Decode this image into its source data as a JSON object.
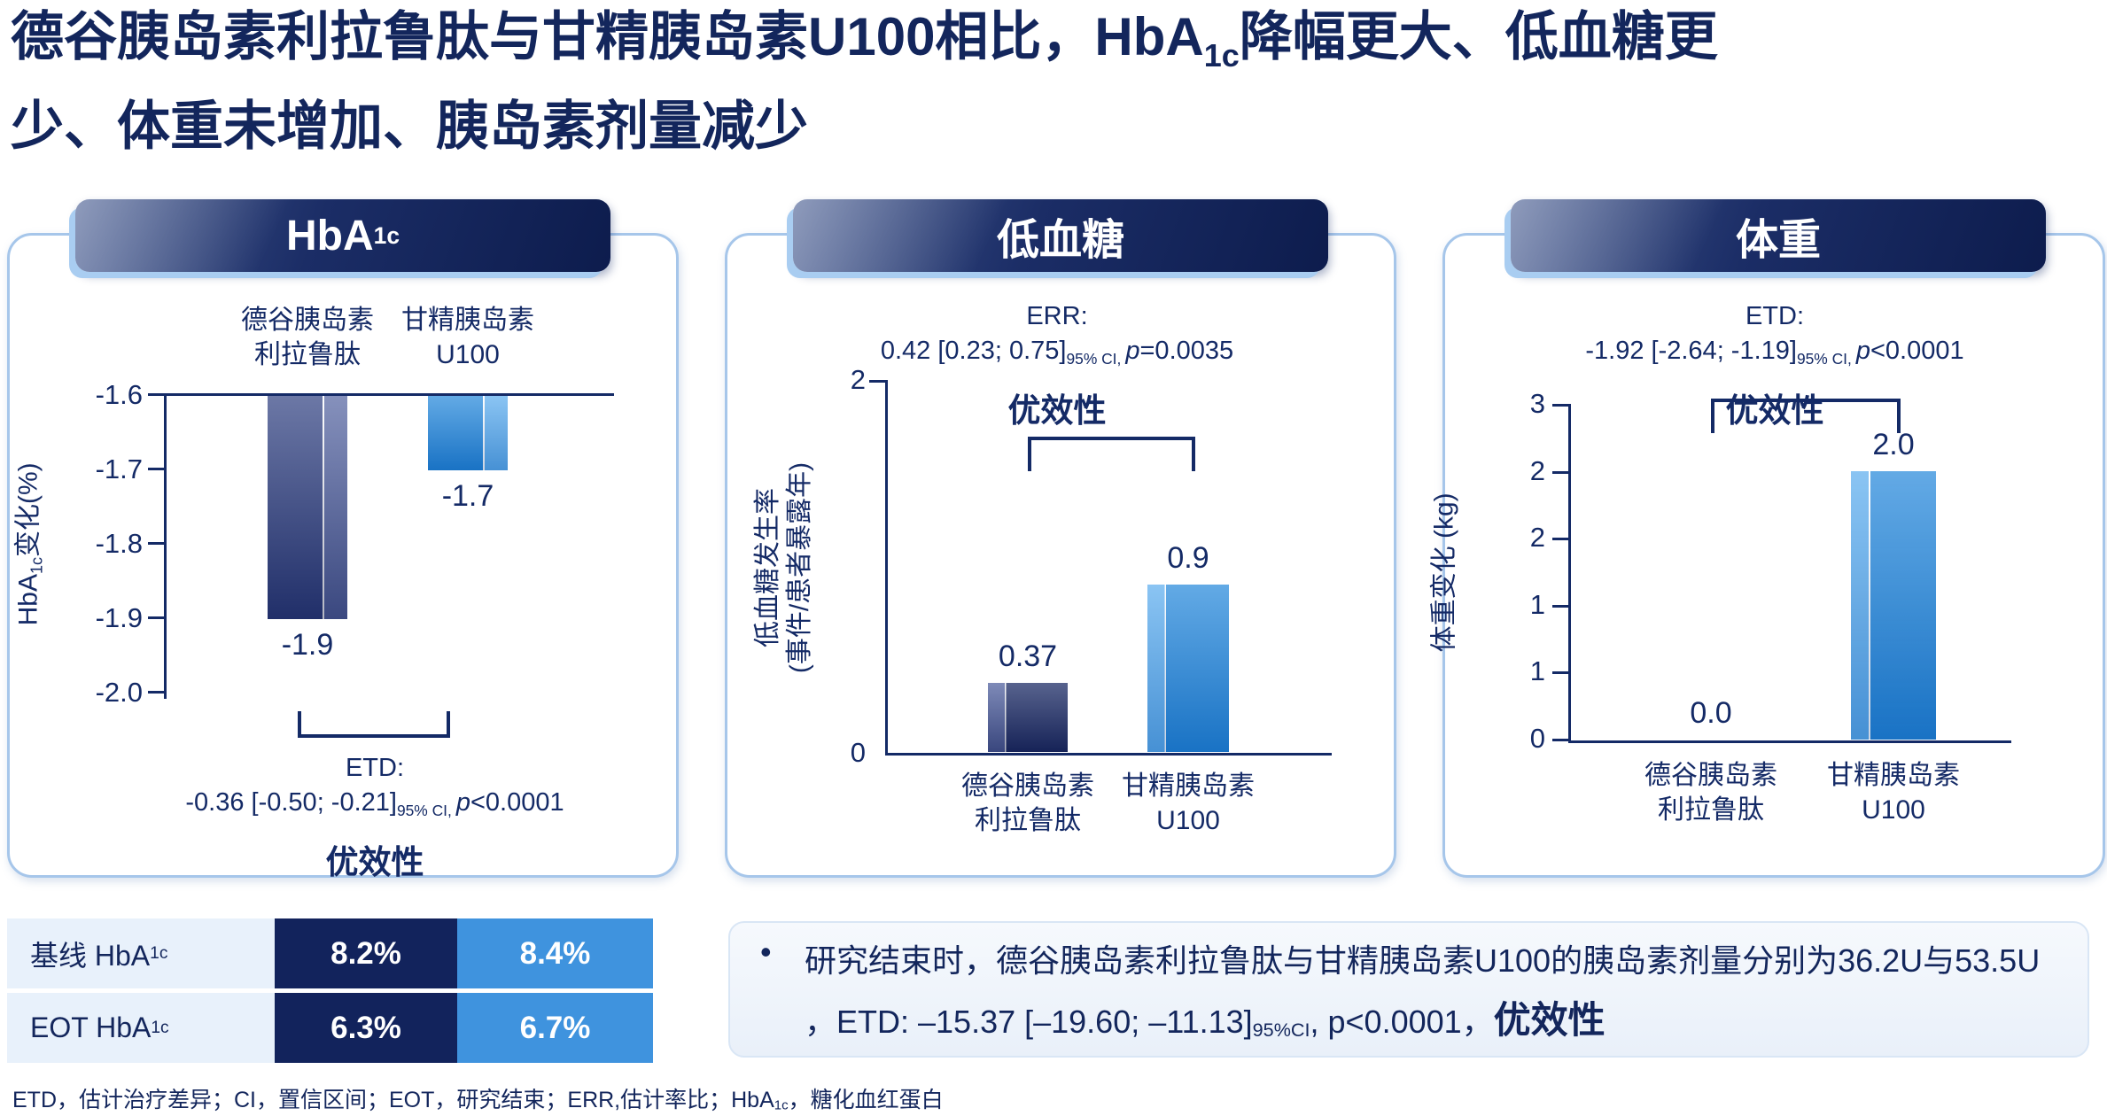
{
  "title": {
    "line1_pre": "德谷胰岛素利拉鲁肽与甘精胰岛素U100相比，HbA",
    "line1_sub": "1c",
    "line1_post": "降幅更大、低血糖更",
    "line2": "少、体重未增加、胰岛素剂量减少"
  },
  "panels": [
    {
      "header": {
        "pre": "HbA",
        "sub": "1c"
      },
      "ylabel": {
        "pre": "HbA",
        "sub": "1c",
        "post": "变化(%)"
      },
      "yticks": [
        "-1.6",
        "-1.7",
        "-1.8",
        "-1.9",
        "-2.0"
      ],
      "categories": [
        {
          "line1": "德谷胰岛素",
          "line2": "利拉鲁肽"
        },
        {
          "line1": "甘精胰岛素",
          "line2": "U100"
        }
      ],
      "bar_labels": [
        "-1.9",
        "-1.7"
      ],
      "annotation": {
        "label": "ETD:",
        "value": "-0.36 [-0.50; -0.21]",
        "ci_sub": "95% CI,",
        "p_italic": "p",
        "p_value": "<0.0001",
        "superiority": "优效性"
      }
    },
    {
      "header": {
        "pre": "低血糖",
        "sub": ""
      },
      "ylabel_line1": "低血糖发生率",
      "ylabel_line2": "(事件/患者暴露年)",
      "yticks": [
        "2",
        "0"
      ],
      "categories": [
        {
          "line1": "德谷胰岛素",
          "line2": "利拉鲁肽"
        },
        {
          "line1": "甘精胰岛素",
          "line2": "U100"
        }
      ],
      "bar_labels": [
        "0.37",
        "0.9"
      ],
      "annotation": {
        "label": "ERR:",
        "value": "0.42 [0.23; 0.75]",
        "ci_sub": "95% CI,",
        "p_italic": "p",
        "p_value": "=0.0035",
        "superiority": "优效性"
      }
    },
    {
      "header": {
        "pre": "体重",
        "sub": ""
      },
      "ylabel": {
        "pre": "体重变化 (kg)",
        "sub": "",
        "post": ""
      },
      "yticks": [
        "3",
        "2",
        "2",
        "1",
        "1",
        "0"
      ],
      "categories": [
        {
          "line1": "德谷胰岛素",
          "line2": "利拉鲁肽"
        },
        {
          "line1": "甘精胰岛素",
          "line2": "U100"
        }
      ],
      "bar_labels": [
        "0.0",
        "2.0"
      ],
      "annotation": {
        "label": "ETD:",
        "value": "-1.92 [-2.64; -1.19]",
        "ci_sub": "95% CI,",
        "p_italic": "p",
        "p_value": "<0.0001",
        "superiority": "优效性"
      }
    }
  ],
  "chart_data": [
    {
      "type": "bar",
      "title": "HbA1c",
      "categories": [
        "德谷胰岛素利拉鲁肽",
        "甘精胰岛素U100"
      ],
      "values": [
        -1.9,
        -1.7
      ],
      "value_labels": [
        "-1.9",
        "-1.7"
      ],
      "orientation": "hanging-from-baseline",
      "baseline": -1.6,
      "ylim": [
        -1.6,
        -2.0
      ],
      "yticks": [
        -1.6,
        -1.7,
        -1.8,
        -1.9,
        -2.0
      ],
      "ylabel": "HbA1c变化(%)",
      "annotation": "ETD: -0.36 [-0.50; -0.21] 95% CI, p<0.0001",
      "superiority_note": "优效性",
      "bar_colors": [
        "#1d2c66",
        "#1f85da"
      ],
      "grid": false,
      "legend": false
    },
    {
      "type": "bar",
      "title": "低血糖",
      "categories": [
        "德谷胰岛素利拉鲁肽",
        "甘精胰岛素U100"
      ],
      "values": [
        0.37,
        0.9
      ],
      "value_labels": [
        "0.37",
        "0.9"
      ],
      "orientation": "vertical",
      "ylim": [
        0,
        2
      ],
      "yticks": [
        0,
        2
      ],
      "ylabel": "低血糖发生率(事件/患者暴露年)",
      "annotation": "ERR: 0.42 [0.23; 0.75] 95% CI, p=0.0035",
      "superiority_note": "优效性",
      "bar_colors": [
        "#1d2c66",
        "#1f85da"
      ],
      "grid": false,
      "legend": false
    },
    {
      "type": "bar",
      "title": "体重",
      "categories": [
        "德谷胰岛素利拉鲁肽",
        "甘精胰岛素U100"
      ],
      "values": [
        0.0,
        2.0
      ],
      "value_labels": [
        "0.0",
        "2.0"
      ],
      "orientation": "vertical",
      "ylim": [
        0,
        2.5
      ],
      "ytick_labels_bottom_to_top": [
        "0",
        "1",
        "1",
        "2",
        "2",
        "3"
      ],
      "ylabel": "体重变化 (kg)",
      "annotation": "ETD: -1.92 [-2.64; -1.19] 95% CI, p<0.0001",
      "superiority_note": "优效性",
      "bar_colors": [
        "#1d2c66",
        "#1f85da"
      ],
      "grid": false,
      "legend": false
    }
  ],
  "table": {
    "rows": [
      {
        "label_pre": "基线 HbA",
        "label_sub": "1c",
        "v1": "8.2%",
        "v2": "8.4%"
      },
      {
        "label_pre": "EOT HbA",
        "label_sub": "1c",
        "v1": "6.3%",
        "v2": "6.7%"
      }
    ]
  },
  "bullet": {
    "marker": "•",
    "line1": "研究结束时，德谷胰岛素利拉鲁肽与甘精胰岛素U100的胰岛素剂量分别为36.2U与53.5U",
    "line2_pre": "，ETD: –15.37 [–19.60; –11.13]",
    "line2_sub": "95%CI",
    "line2_post": ", p<0.0001，",
    "line2_bold": "优效性"
  },
  "footnote": {
    "pre": "ETD，估计治疗差异；CI，置信区间；EOT，研究结束；ERR,估计率比；HbA",
    "sub": "1c",
    "post": "，糖化血红蛋白"
  },
  "colors": {
    "navy_text": "#13265c",
    "dark_bar": "#1d2c66",
    "light_bar": "#1f85da",
    "panel_border": "#a6c6ea",
    "pill_accent": "#a9cdf1",
    "table_label_bg": "#e8f1fb",
    "table_navy_bg": "#12235c",
    "table_blue_bg": "#3f93de"
  }
}
